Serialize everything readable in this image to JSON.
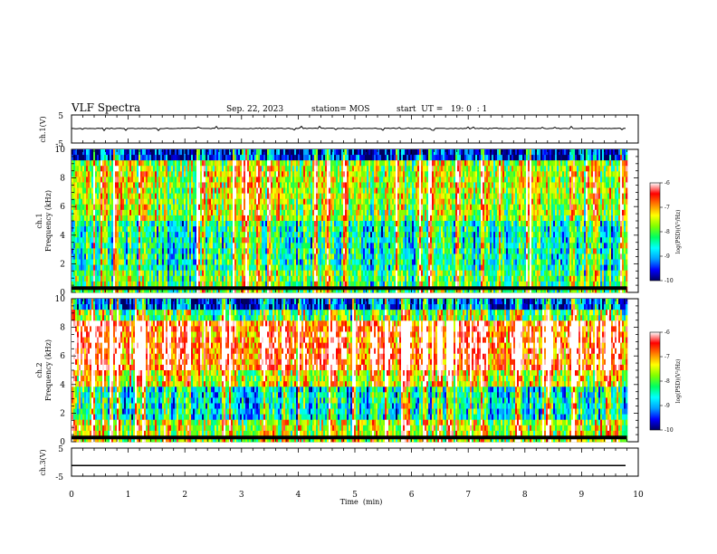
{
  "header": {
    "title": "VLF Spectra",
    "date": "Sep. 22, 2023",
    "station": "station= MOS",
    "start": "start  UT =   19: 0  : 1"
  },
  "chart_data": [
    {
      "type": "line",
      "panel": "ch1-waveform",
      "ylabel": "ch.1(V)",
      "yticks": [
        "5",
        "-5"
      ],
      "ylim": [
        -5,
        5
      ],
      "xlim": [
        0,
        10
      ],
      "x_extent": [
        0,
        9.8
      ],
      "trace_level": 0.2,
      "description_level": "near 0 V with small bursts"
    },
    {
      "type": "heatmap",
      "panel": "ch1-spectrogram",
      "ylabel": "ch.1\nFrequency (kHz)",
      "yticks": [
        "0",
        "2",
        "4",
        "6",
        "8",
        "10"
      ],
      "ylim": [
        0,
        10
      ],
      "xlim": [
        0,
        10
      ],
      "x_extent": [
        0,
        9.8
      ],
      "colorbar": {
        "label": "log(PSD)(V²/Hz)",
        "ticks": [
          "-6",
          "-7",
          "-8",
          "-9",
          "-10"
        ],
        "range": [
          -10,
          -6
        ]
      }
    },
    {
      "type": "heatmap",
      "panel": "ch2-spectrogram",
      "ylabel": "ch.2\nFrequency (kHz)",
      "yticks": [
        "0",
        "2",
        "4",
        "6",
        "8",
        "10"
      ],
      "ylim": [
        0,
        10
      ],
      "xlim": [
        0,
        10
      ],
      "x_extent": [
        0,
        9.8
      ],
      "colorbar": {
        "label": "log(PSD)(V²/Hz)",
        "ticks": [
          "-6",
          "-7",
          "-8",
          "-9",
          "-10"
        ],
        "range": [
          -10,
          -6
        ]
      }
    },
    {
      "type": "line",
      "panel": "ch3-waveform",
      "ylabel": "ch.3(V)",
      "yticks": [
        "5",
        "-5"
      ],
      "ylim": [
        -5,
        5
      ],
      "xlim": [
        0,
        10
      ],
      "x_extent": [
        0,
        9.8
      ],
      "trace_level": -1.2
    }
  ],
  "xaxis": {
    "label": "Time  (min)",
    "ticks": [
      "0",
      "1",
      "2",
      "3",
      "4",
      "5",
      "6",
      "7",
      "8",
      "9",
      "10"
    ]
  },
  "colors": {
    "colormap": [
      "#000060",
      "#0000ff",
      "#00a0ff",
      "#00ffff",
      "#00ff60",
      "#80ff00",
      "#ffff00",
      "#ff8000",
      "#ff0000",
      "#ffffff"
    ]
  }
}
